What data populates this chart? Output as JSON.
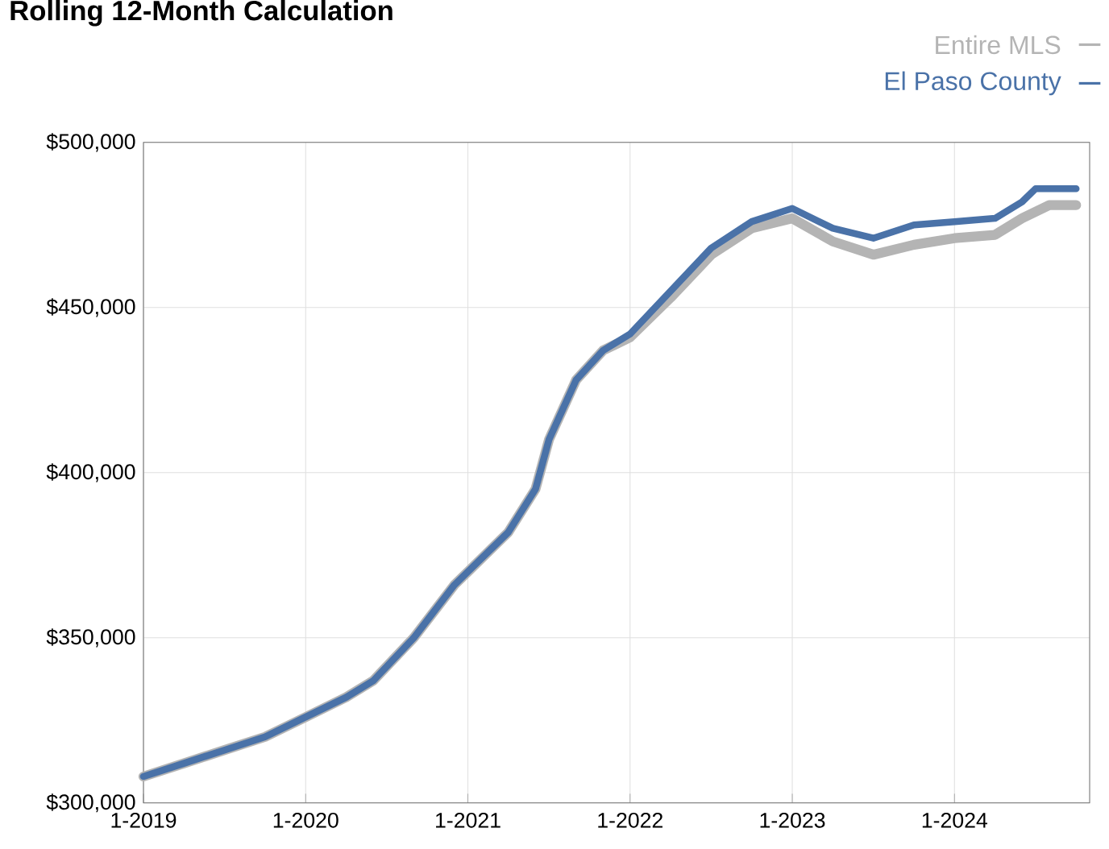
{
  "chart_data": {
    "type": "line",
    "title": "Rolling 12-Month Calculation",
    "legend": "top right",
    "grid": true,
    "line_style": "solid",
    "xlim": [
      "2019-01",
      "2024-11"
    ],
    "xticks": [
      {
        "value": "2019-01",
        "label": "1-2019"
      },
      {
        "value": "2020-01",
        "label": "1-2020"
      },
      {
        "value": "2021-01",
        "label": "1-2021"
      },
      {
        "value": "2022-01",
        "label": "1-2022"
      },
      {
        "value": "2023-01",
        "label": "1-2023"
      },
      {
        "value": "2024-01",
        "label": "1-2024"
      }
    ],
    "ylim": [
      300000,
      500000
    ],
    "yticks": [
      {
        "value": 300000,
        "label": "$300,000"
      },
      {
        "value": 350000,
        "label": "$350,000"
      },
      {
        "value": 400000,
        "label": "$400,000"
      },
      {
        "value": 450000,
        "label": "$450,000"
      },
      {
        "value": 500000,
        "label": "$500,000"
      }
    ],
    "series": [
      {
        "name": "Entire MLS",
        "color": "#b4b4b4",
        "x": [
          "2019-01",
          "2019-04",
          "2019-07",
          "2019-10",
          "2020-01",
          "2020-04",
          "2020-06",
          "2020-09",
          "2020-12",
          "2021-01",
          "2021-04",
          "2021-06",
          "2021-07",
          "2021-09",
          "2021-11",
          "2022-01",
          "2022-04",
          "2022-07",
          "2022-10",
          "2023-01",
          "2023-04",
          "2023-07",
          "2023-10",
          "2024-01",
          "2024-04",
          "2024-06",
          "2024-08",
          "2024-10"
        ],
        "values": [
          308000,
          312000,
          316000,
          320000,
          326000,
          332000,
          337000,
          350000,
          366000,
          370000,
          382000,
          395000,
          410000,
          428000,
          437000,
          441000,
          453000,
          466000,
          474000,
          477000,
          470000,
          466000,
          469000,
          471000,
          472000,
          477000,
          481000,
          481000
        ]
      },
      {
        "name": "El Paso County",
        "color": "#4a72a8",
        "x": [
          "2019-01",
          "2019-04",
          "2019-07",
          "2019-10",
          "2020-01",
          "2020-04",
          "2020-06",
          "2020-09",
          "2020-12",
          "2021-01",
          "2021-04",
          "2021-06",
          "2021-07",
          "2021-09",
          "2021-11",
          "2022-01",
          "2022-04",
          "2022-07",
          "2022-10",
          "2023-01",
          "2023-04",
          "2023-07",
          "2023-10",
          "2024-01",
          "2024-04",
          "2024-06",
          "2024-07",
          "2024-10"
        ],
        "values": [
          308000,
          312000,
          316000,
          320000,
          326000,
          332000,
          337000,
          350000,
          366000,
          370000,
          382000,
          395000,
          410000,
          428000,
          437000,
          442000,
          455000,
          468000,
          476000,
          480000,
          474000,
          471000,
          475000,
          476000,
          477000,
          482000,
          486000,
          486000
        ]
      }
    ]
  }
}
